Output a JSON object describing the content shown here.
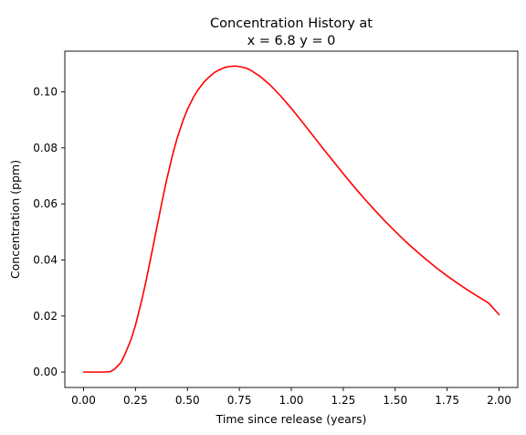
{
  "chart_data": {
    "type": "line",
    "title_line1": "Concentration History at",
    "title_line2": "x = 6.8 y = 0",
    "xlabel": "Time since release (years)",
    "ylabel": "Concentration  (ppm)",
    "xlim": [
      -0.09,
      2.09
    ],
    "ylim": [
      -0.0055,
      0.1145
    ],
    "xticks": [
      0.0,
      0.25,
      0.5,
      0.75,
      1.0,
      1.25,
      1.5,
      1.75,
      2.0
    ],
    "xtick_labels": [
      "0.00",
      "0.25",
      "0.50",
      "0.75",
      "1.00",
      "1.25",
      "1.50",
      "1.75",
      "2.00"
    ],
    "yticks": [
      0.0,
      0.02,
      0.04,
      0.06,
      0.08,
      0.1
    ],
    "ytick_labels": [
      "0.00",
      "0.02",
      "0.04",
      "0.06",
      "0.08",
      "0.10"
    ],
    "grid": false,
    "series": [
      {
        "color": "#ff0000",
        "x": [
          0.0,
          0.05,
          0.1,
          0.13,
          0.15,
          0.18,
          0.2,
          0.23,
          0.25,
          0.28,
          0.3,
          0.33,
          0.35,
          0.38,
          0.4,
          0.43,
          0.45,
          0.48,
          0.5,
          0.53,
          0.55,
          0.58,
          0.6,
          0.63,
          0.65,
          0.68,
          0.7,
          0.73,
          0.75,
          0.78,
          0.8,
          0.85,
          0.9,
          0.95,
          1.0,
          1.05,
          1.1,
          1.15,
          1.2,
          1.25,
          1.3,
          1.35,
          1.4,
          1.45,
          1.5,
          1.55,
          1.6,
          1.65,
          1.7,
          1.75,
          1.8,
          1.85,
          1.9,
          1.95,
          2.0
        ],
        "y": [
          0.0,
          0.0,
          0.0,
          0.0002,
          0.0011,
          0.0034,
          0.0064,
          0.0119,
          0.0167,
          0.0256,
          0.0322,
          0.0431,
          0.0506,
          0.0616,
          0.0686,
          0.0779,
          0.0833,
          0.09,
          0.0937,
          0.0982,
          0.1006,
          0.1035,
          0.105,
          0.1069,
          0.1077,
          0.1087,
          0.109,
          0.1092,
          0.109,
          0.1085,
          0.1079,
          0.1055,
          0.1023,
          0.0984,
          0.0941,
          0.0895,
          0.0848,
          0.08,
          0.0754,
          0.0708,
          0.0663,
          0.062,
          0.0579,
          0.0539,
          0.0502,
          0.0466,
          0.0433,
          0.0401,
          0.0371,
          0.0343,
          0.0317,
          0.0292,
          0.0269,
          0.0246,
          0.0205
        ]
      }
    ]
  }
}
